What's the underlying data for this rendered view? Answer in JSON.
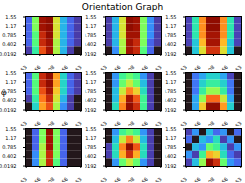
{
  "chart_data": {
    "type": "heatmap",
    "title": "Orientation Graph",
    "y_label": "φ",
    "xlim": [
      -1.571,
      1.571
    ],
    "ylim": [
      0,
      1.571
    ],
    "xticks": [
      -1.53,
      -0.766,
      {
        "value": -1.49e-08,
        "label": "-1.49e-08"
      },
      0.766,
      1.53
    ],
    "yticks": [
      0.0192,
      0.402,
      0.785,
      1.17,
      1.55
    ],
    "panels": [
      {
        "cells": [
          [
            0.2,
            0.5,
            0.9,
            0.95,
            0.6,
            0.3,
            0.2,
            0.15
          ],
          [
            0.2,
            0.5,
            0.9,
            0.95,
            0.6,
            0.3,
            0.2,
            0.15
          ],
          [
            0.2,
            0.45,
            0.85,
            0.95,
            0.6,
            0.3,
            0.2,
            0.15
          ],
          [
            0.2,
            0.45,
            0.85,
            0.9,
            0.55,
            0.3,
            0.2,
            0.15
          ],
          [
            0.15,
            0.4,
            0.8,
            0.9,
            0.55,
            0.3,
            0.15,
            0.1
          ]
        ]
      },
      {
        "cells": [
          [
            0.15,
            0.3,
            0.6,
            0.95,
            0.9,
            0.5,
            0.25,
            0.15
          ],
          [
            0.15,
            0.3,
            0.6,
            0.95,
            0.9,
            0.5,
            0.25,
            0.15
          ],
          [
            0.15,
            0.3,
            0.6,
            0.9,
            0.9,
            0.5,
            0.25,
            0.15
          ],
          [
            0.15,
            0.3,
            0.55,
            0.9,
            0.85,
            0.5,
            0.2,
            0.15
          ],
          [
            0.1,
            0.25,
            0.55,
            0.9,
            0.85,
            0.45,
            0.2,
            0.1
          ]
        ]
      },
      {
        "cells": [
          [
            0.2,
            0.4,
            0.7,
            0.9,
            0.9,
            0.7,
            0.4,
            0.2
          ],
          [
            0.2,
            0.4,
            0.7,
            0.9,
            0.9,
            0.7,
            0.4,
            0.2
          ],
          [
            0.2,
            0.4,
            0.7,
            0.85,
            0.85,
            0.7,
            0.4,
            0.2
          ],
          [
            0.2,
            0.35,
            0.65,
            0.85,
            0.85,
            0.65,
            0.35,
            0.2
          ],
          [
            0.15,
            0.35,
            0.6,
            0.8,
            0.8,
            0.6,
            0.35,
            0.15
          ]
        ]
      },
      {
        "cells": [
          [
            0.2,
            0.45,
            0.85,
            0.95,
            0.7,
            0.35,
            0.2,
            0.15
          ],
          [
            0.2,
            0.45,
            0.85,
            0.95,
            0.7,
            0.35,
            0.2,
            0.15
          ],
          [
            0.2,
            0.45,
            0.8,
            0.9,
            0.65,
            0.35,
            0.2,
            0.15
          ],
          [
            0.15,
            0.4,
            0.75,
            0.85,
            0.6,
            0.3,
            0.15,
            0.1
          ],
          [
            0.1,
            0.35,
            0.7,
            0.8,
            0.55,
            0.25,
            0.15,
            0.1
          ]
        ]
      },
      {
        "cells": [
          [
            0.15,
            0.3,
            0.45,
            0.5,
            0.45,
            0.3,
            0.2,
            0.15
          ],
          [
            0.15,
            0.3,
            0.5,
            0.6,
            0.5,
            0.35,
            0.2,
            0.15
          ],
          [
            0.15,
            0.35,
            0.6,
            0.75,
            0.65,
            0.4,
            0.2,
            0.15
          ],
          [
            0.15,
            0.35,
            0.7,
            0.9,
            0.8,
            0.45,
            0.2,
            0.15
          ],
          [
            0.15,
            0.4,
            0.75,
            0.95,
            0.85,
            0.45,
            0.2,
            0.15
          ]
        ]
      },
      {
        "cells": [
          [
            0.25,
            0.35,
            0.4,
            0.45,
            0.45,
            0.4,
            0.3,
            0.25
          ],
          [
            0.25,
            0.35,
            0.45,
            0.5,
            0.5,
            0.45,
            0.35,
            0.25
          ],
          [
            0.25,
            0.35,
            0.5,
            0.6,
            0.6,
            0.5,
            0.35,
            0.25
          ],
          [
            0.25,
            0.4,
            0.6,
            0.8,
            0.8,
            0.65,
            0.4,
            0.25
          ],
          [
            0.25,
            0.4,
            0.7,
            0.95,
            0.95,
            0.75,
            0.45,
            0.25
          ]
        ]
      },
      {
        "cells": [
          [
            0.1,
            0.2,
            0.5,
            0.95,
            0.5,
            0.2,
            0.1,
            0.1
          ],
          [
            0.1,
            0.2,
            0.5,
            0.9,
            0.5,
            0.2,
            0.1,
            0.1
          ],
          [
            0.1,
            0.2,
            0.55,
            0.9,
            0.5,
            0.2,
            0.1,
            0.1
          ],
          [
            0.1,
            0.25,
            0.55,
            0.85,
            0.5,
            0.2,
            0.1,
            0.1
          ],
          [
            0.1,
            0.25,
            0.55,
            0.85,
            0.45,
            0.2,
            0.1,
            0.1
          ]
        ]
      },
      {
        "cells": [
          [
            0.15,
            0.3,
            0.45,
            0.5,
            0.45,
            0.3,
            0.2,
            0.15
          ],
          [
            0.15,
            0.35,
            0.6,
            0.75,
            0.6,
            0.35,
            0.2,
            0.15
          ],
          [
            0.2,
            0.4,
            0.75,
            0.95,
            0.8,
            0.4,
            0.2,
            0.15
          ],
          [
            0.2,
            0.4,
            0.7,
            0.85,
            0.7,
            0.4,
            0.2,
            0.15
          ],
          [
            0.15,
            0.3,
            0.5,
            0.6,
            0.5,
            0.3,
            0.2,
            0.15
          ]
        ]
      },
      {
        "cells": [
          [
            0.2,
            0.3,
            0.15,
            0.35,
            0.25,
            0.3,
            0.15,
            0.25
          ],
          [
            0.25,
            0.15,
            0.35,
            0.3,
            0.4,
            0.2,
            0.3,
            0.15
          ],
          [
            0.15,
            0.35,
            0.3,
            0.5,
            0.45,
            0.35,
            0.2,
            0.3
          ],
          [
            0.3,
            0.2,
            0.45,
            0.7,
            0.65,
            0.4,
            0.25,
            0.2
          ],
          [
            0.2,
            0.35,
            0.55,
            0.95,
            0.85,
            0.5,
            0.3,
            0.25
          ]
        ]
      }
    ]
  }
}
